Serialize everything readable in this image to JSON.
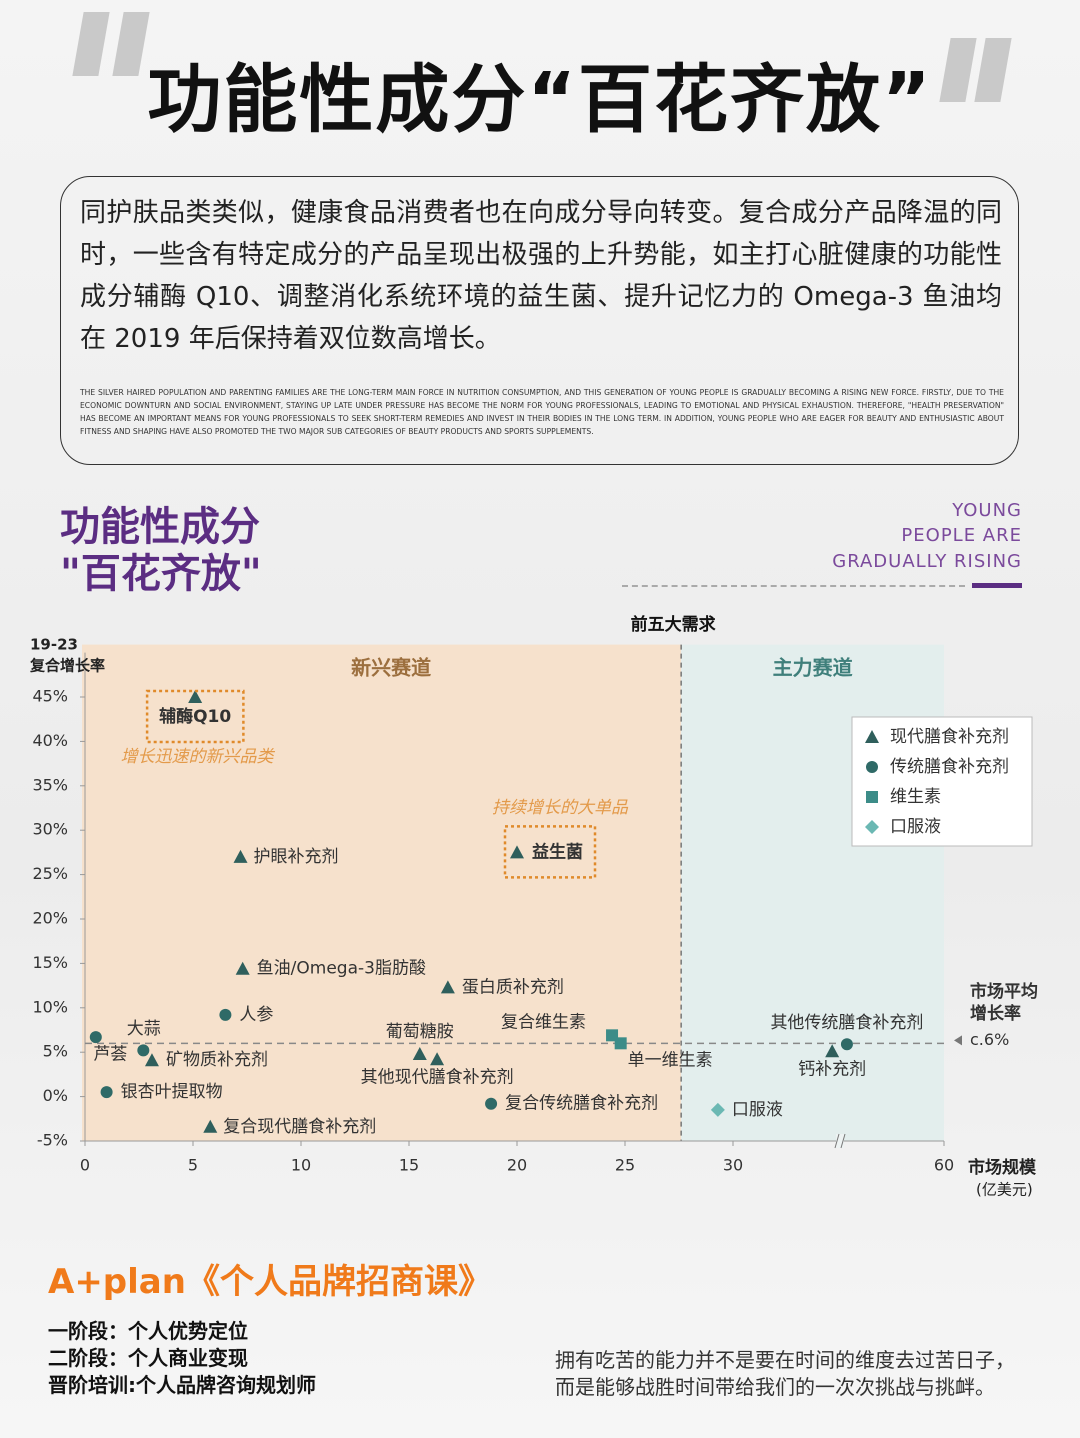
{
  "header": {
    "title": "功能性成分“百花齐放”"
  },
  "intro": {
    "text": "同护肤品类类似，健康食品消费者也在向成分导向转变。复合成分产品降温的同时，一些含有特定成分的产品呈现出极强的上升势能，如主打心脏健康的功能性成分辅酶 Q10、调整消化系统环境的益生菌、提升记忆力的 Omega-3 鱼油均在 2019 年后保持着双位数高增长。",
    "english": "THE SILVER HAIRED POPULATION AND PARENTING FAMILIES ARE THE LONG-TERM MAIN FORCE IN NUTRITION CONSUMPTION, AND THIS GENERATION OF YOUNG PEOPLE IS GRADUALLY BECOMING A RISING NEW FORCE. FIRSTLY, DUE TO THE ECONOMIC DOWNTURN AND SOCIAL ENVIRONMENT, STAYING UP LATE UNDER PRESSURE HAS BECOME THE NORM FOR YOUNG PROFESSIONALS, LEADING TO EMOTIONAL AND PHYSICAL EXHAUSTION. THEREFORE, \"HEALTH PRESERVATION\" HAS BECOME AN IMPORTANT MEANS FOR YOUNG PROFESSIONALS TO SEEK SHORT-TERM REMEDIES AND INVEST IN THEIR BODIES IN THE LONG TERM. IN ADDITION, YOUNG PEOPLE WHO ARE EAGER FOR BEAUTY AND ENTHUSIASTIC ABOUT FITNESS AND SHAPING HAVE ALSO PROMOTED THE TWO MAJOR SUB CATEGORIES OF BEAUTY PRODUCTS AND SPORTS SUPPLEMENTS."
  },
  "section": {
    "title_lines": [
      "功能性成分",
      "\"百花齐放\""
    ],
    "tag_lines": [
      "YOUNG",
      "PEOPLE ARE",
      "GRADUALLY RISING"
    ]
  },
  "chart_data": {
    "type": "scatter",
    "y_title": [
      "19-23",
      "复合增长率"
    ],
    "x_title": [
      "市场规模",
      "(亿美元)"
    ],
    "xlim": [
      0,
      60
    ],
    "x_break": [
      30,
      60
    ],
    "xticks": [
      0,
      5,
      10,
      15,
      20,
      25,
      30,
      60
    ],
    "ylim": [
      -5,
      50
    ],
    "yticks": [
      {
        "value": -5,
        "label": "-5%"
      },
      {
        "value": 0,
        "label": "0%"
      },
      {
        "value": 5,
        "label": "5%"
      },
      {
        "value": 10,
        "label": "10%"
      },
      {
        "value": 15,
        "label": "15%"
      },
      {
        "value": 20,
        "label": "20%"
      },
      {
        "value": 25,
        "label": "25%"
      },
      {
        "value": 30,
        "label": "30%"
      },
      {
        "value": 35,
        "label": "35%"
      },
      {
        "value": 40,
        "label": "40%"
      },
      {
        "value": 45,
        "label": "45%"
      }
    ],
    "divider_x": 27.6,
    "divider_title": "前五大需求",
    "regions": [
      "新兴赛道",
      "主力赛道"
    ],
    "average": {
      "value": 6,
      "label": "c.6%",
      "title": [
        "市场平均",
        "增长率"
      ]
    },
    "annotations": [
      "增长迅速的新兴品类",
      "持续增长的大单品"
    ],
    "legend": "upper right",
    "series": [
      {
        "name": "现代膳食补充剂",
        "marker": "triangle",
        "color": "#2f5f5c",
        "labels": [
          "辅酶Q10",
          "护眼补充剂",
          "益生菌",
          "鱼油/Omega-3脂肪酸",
          "蛋白质补充剂",
          "葡萄糖胺",
          "其他现代膳食补充剂",
          "矿物质补充剂",
          "复合现代膳食补充剂",
          "钙补充剂"
        ],
        "x": [
          5.1,
          7.2,
          20,
          7.3,
          16.8,
          15.5,
          16.3,
          3.1,
          5.8,
          44.1
        ],
        "values": [
          45,
          27,
          27.5,
          14.4,
          12.3,
          4.8,
          4.2,
          4.1,
          -3.4,
          5.1
        ]
      },
      {
        "name": "传统膳食补充剂",
        "marker": "circle",
        "color": "#2f6a67",
        "labels": [
          "人参",
          "大蒜",
          "芦荟",
          "银杏叶提取物",
          "复合传统膳食补充剂",
          "其他传统膳食补充剂"
        ],
        "x": [
          6.5,
          0.5,
          2.7,
          1,
          18.8,
          46.2
        ],
        "values": [
          9.2,
          6.7,
          5.2,
          0.5,
          -0.8,
          5.9
        ]
      },
      {
        "name": "维生素",
        "marker": "square",
        "color": "#3c8c88",
        "labels": [
          "复合维生素",
          "单一维生素"
        ],
        "x": [
          24.4,
          24.8
        ],
        "values": [
          6.9,
          6
        ]
      },
      {
        "name": "口服液",
        "marker": "diamond",
        "color": "#6bb8b3",
        "labels": [
          "口服液"
        ],
        "x": [
          29.3
        ],
        "values": [
          -1.5
        ]
      }
    ]
  },
  "footer": {
    "brand": "A+plan《个人品牌招商课》",
    "stages": [
      "一阶段：个人优势定位",
      "二阶段：个人商业变现",
      "晋阶培训:个人品牌咨询规划师"
    ],
    "quote": [
      "拥有吃苦的能力并不是要在时间的维度去过苦日子，",
      "而是能够战胜时间带给我们的一次次挑战与挑衅。"
    ]
  }
}
